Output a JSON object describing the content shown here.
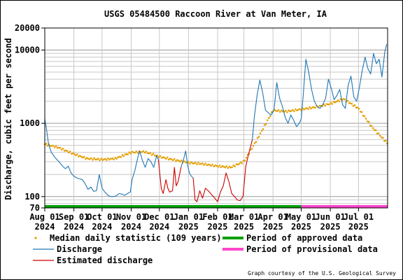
{
  "chart_data": {
    "type": "line",
    "title": "USGS 05484500 Raccoon River at Van Meter, IA",
    "ylabel": "Discharge, cubic feet per second",
    "xlabel": "",
    "y_scale": "log",
    "ylim": [
      70,
      20000
    ],
    "xlim": [
      "2024-08-01",
      "2025-08-01"
    ],
    "grid": true,
    "y_ticks": [
      "20000",
      "10000",
      "1000",
      "100",
      "70"
    ],
    "y_tick_values": [
      20000,
      10000,
      1000,
      100,
      70
    ],
    "x_ticks": [
      {
        "date": "2024-08-01",
        "l1": "Aug 01",
        "l2": "2024"
      },
      {
        "date": "2024-09-01",
        "l1": "Sep 01",
        "l2": "2024"
      },
      {
        "date": "2024-10-01",
        "l1": "Oct 01",
        "l2": "2024"
      },
      {
        "date": "2024-11-01",
        "l1": "Nov 01",
        "l2": "2024"
      },
      {
        "date": "2024-12-01",
        "l1": "Dec 01",
        "l2": "2024"
      },
      {
        "date": "2025-01-01",
        "l1": "Jan 01",
        "l2": "2025"
      },
      {
        "date": "2025-02-01",
        "l1": "Feb 01",
        "l2": "2025"
      },
      {
        "date": "2025-03-01",
        "l1": "Mar 01",
        "l2": "2025"
      },
      {
        "date": "2025-04-01",
        "l1": "Apr 01",
        "l2": "2025"
      },
      {
        "date": "2025-05-01",
        "l1": "May 01",
        "l2": "2025"
      },
      {
        "date": "2025-06-01",
        "l1": "Jun 01",
        "l2": "2025"
      },
      {
        "date": "2025-07-01",
        "l1": "Jul 01",
        "l2": "2025"
      }
    ],
    "legend": [
      {
        "label": "Median daily statistic (109 years)",
        "color": "#e69f00",
        "kind": "dot"
      },
      {
        "label": "Period of approved data",
        "color": "#00a000",
        "kind": "bar"
      },
      {
        "label": "Discharge",
        "color": "#1f77b4",
        "kind": "line"
      },
      {
        "label": "Period of provisional data",
        "color": "#ff44cc",
        "kind": "bar"
      },
      {
        "label": "Estimated discharge",
        "color": "#cc0000",
        "kind": "line"
      }
    ],
    "credit": "Graph courtesy of the U.S. Geological Survey",
    "periods": [
      {
        "name": "Period of approved data",
        "start": "2024-08-01",
        "end": "2025-05-01",
        "color": "#00a000"
      },
      {
        "name": "Period of provisional data",
        "start": "2025-05-01",
        "end": "2025-08-01",
        "color": "#ff44cc"
      }
    ],
    "series": [
      {
        "name": "Discharge",
        "color": "#1f77b4",
        "segments": [
          {
            "x": [
              "2024-08-01",
              "2024-08-03",
              "2024-08-05",
              "2024-08-08",
              "2024-08-12",
              "2024-08-16",
              "2024-08-20",
              "2024-08-23",
              "2024-08-26",
              "2024-08-29",
              "2024-09-01",
              "2024-09-04",
              "2024-09-07",
              "2024-09-10",
              "2024-09-13",
              "2024-09-16",
              "2024-09-19",
              "2024-09-22",
              "2024-09-25",
              "2024-09-28",
              "2024-10-01",
              "2024-10-04",
              "2024-10-07",
              "2024-10-10",
              "2024-10-13",
              "2024-10-16",
              "2024-10-19",
              "2024-10-22",
              "2024-10-25",
              "2024-10-28",
              "2024-10-31",
              "2024-11-02",
              "2024-11-05",
              "2024-11-08",
              "2024-11-10",
              "2024-11-13",
              "2024-11-16",
              "2024-11-19",
              "2024-11-22",
              "2024-11-25",
              "2024-11-28",
              "2024-11-30"
            ],
            "y": [
              1150,
              800,
              520,
              400,
              340,
              300,
              260,
              240,
              260,
              210,
              190,
              180,
              175,
              170,
              150,
              125,
              135,
              118,
              120,
              200,
              130,
              115,
              105,
              100,
              100,
              102,
              110,
              108,
              104,
              110,
              115,
              170,
              230,
              340,
              420,
              310,
              250,
              330,
              300,
              250,
              360,
              320
            ]
          },
          {
            "x": [
              "2024-12-24",
              "2024-12-27",
              "2024-12-29",
              "2024-12-31",
              "2025-01-02",
              "2025-01-04",
              "2025-01-06"
            ],
            "y": [
              250,
              330,
              420,
              270,
              210,
              190,
              180
            ]
          },
          {
            "x": [
              "2025-03-10",
              "2025-03-12",
              "2025-03-15",
              "2025-03-18",
              "2025-03-21",
              "2025-03-24",
              "2025-03-27",
              "2025-03-30",
              "2025-04-02",
              "2025-04-05",
              "2025-04-08",
              "2025-04-11",
              "2025-04-14",
              "2025-04-17",
              "2025-04-20",
              "2025-04-23",
              "2025-04-26",
              "2025-04-29",
              "2025-05-01",
              "2025-05-03",
              "2025-05-06",
              "2025-05-09",
              "2025-05-12",
              "2025-05-15",
              "2025-05-18",
              "2025-05-21",
              "2025-05-24",
              "2025-05-27",
              "2025-05-30",
              "2025-06-02",
              "2025-06-05",
              "2025-06-08",
              "2025-06-11",
              "2025-06-14",
              "2025-06-17",
              "2025-06-20",
              "2025-06-23",
              "2025-06-26",
              "2025-06-29",
              "2025-07-02",
              "2025-07-05",
              "2025-07-08",
              "2025-07-11",
              "2025-07-14",
              "2025-07-17",
              "2025-07-20",
              "2025-07-23",
              "2025-07-26",
              "2025-07-29",
              "2025-07-31"
            ],
            "y": [
              600,
              1200,
              2400,
              3900,
              2600,
              1500,
              1400,
              1300,
              1500,
              3600,
              2200,
              1700,
              1200,
              1000,
              1300,
              1100,
              900,
              1000,
              1150,
              2300,
              7500,
              5000,
              2900,
              2000,
              1700,
              1600,
              1800,
              2200,
              4000,
              3000,
              2100,
              2400,
              2900,
              1800,
              1600,
              3300,
              4400,
              2300,
              2000,
              3100,
              5300,
              8000,
              5600,
              4700,
              9000,
              6500,
              7500,
              4300,
              9500,
              12000
            ]
          }
        ]
      },
      {
        "name": "Estimated discharge",
        "color": "#cc0000",
        "segments": [
          {
            "x": [
              "2024-11-30",
              "2024-12-03",
              "2024-12-05",
              "2024-12-08",
              "2024-12-10",
              "2024-12-12",
              "2024-12-15",
              "2024-12-17",
              "2024-12-19",
              "2024-12-21",
              "2024-12-24"
            ],
            "y": [
              320,
              130,
              110,
              170,
              130,
              115,
              120,
              250,
              140,
              160,
              250
            ]
          },
          {
            "x": [
              "2025-01-06",
              "2025-01-08",
              "2025-01-10",
              "2025-01-13",
              "2025-01-16",
              "2025-01-19",
              "2025-01-22",
              "2025-01-26",
              "2025-01-29",
              "2025-02-01",
              "2025-02-04",
              "2025-02-07",
              "2025-02-10",
              "2025-02-13",
              "2025-02-16",
              "2025-02-19",
              "2025-02-22",
              "2025-02-25",
              "2025-02-28",
              "2025-03-03",
              "2025-03-06",
              "2025-03-10"
            ],
            "y": [
              180,
              90,
              85,
              120,
              95,
              130,
              120,
              105,
              95,
              85,
              115,
              140,
              210,
              160,
              110,
              100,
              90,
              88,
              100,
              260,
              380,
              600
            ]
          }
        ]
      },
      {
        "name": "Median daily statistic (109 years)",
        "color": "#e69f00",
        "x": [
          "2024-08-01",
          "2024-08-15",
          "2024-09-01",
          "2024-09-15",
          "2024-10-01",
          "2024-10-15",
          "2024-11-01",
          "2024-11-15",
          "2024-12-01",
          "2024-12-15",
          "2025-01-01",
          "2025-01-15",
          "2025-02-01",
          "2025-02-15",
          "2025-03-01",
          "2025-03-15",
          "2025-04-01",
          "2025-04-15",
          "2025-05-01",
          "2025-05-15",
          "2025-06-01",
          "2025-06-15",
          "2025-07-01",
          "2025-07-15",
          "2025-08-01"
        ],
        "y": [
          520,
          470,
          380,
          330,
          320,
          330,
          400,
          410,
          350,
          320,
          290,
          280,
          260,
          250,
          300,
          600,
          1500,
          1450,
          1550,
          1650,
          1850,
          2150,
          1600,
          900,
          530
        ]
      }
    ]
  }
}
